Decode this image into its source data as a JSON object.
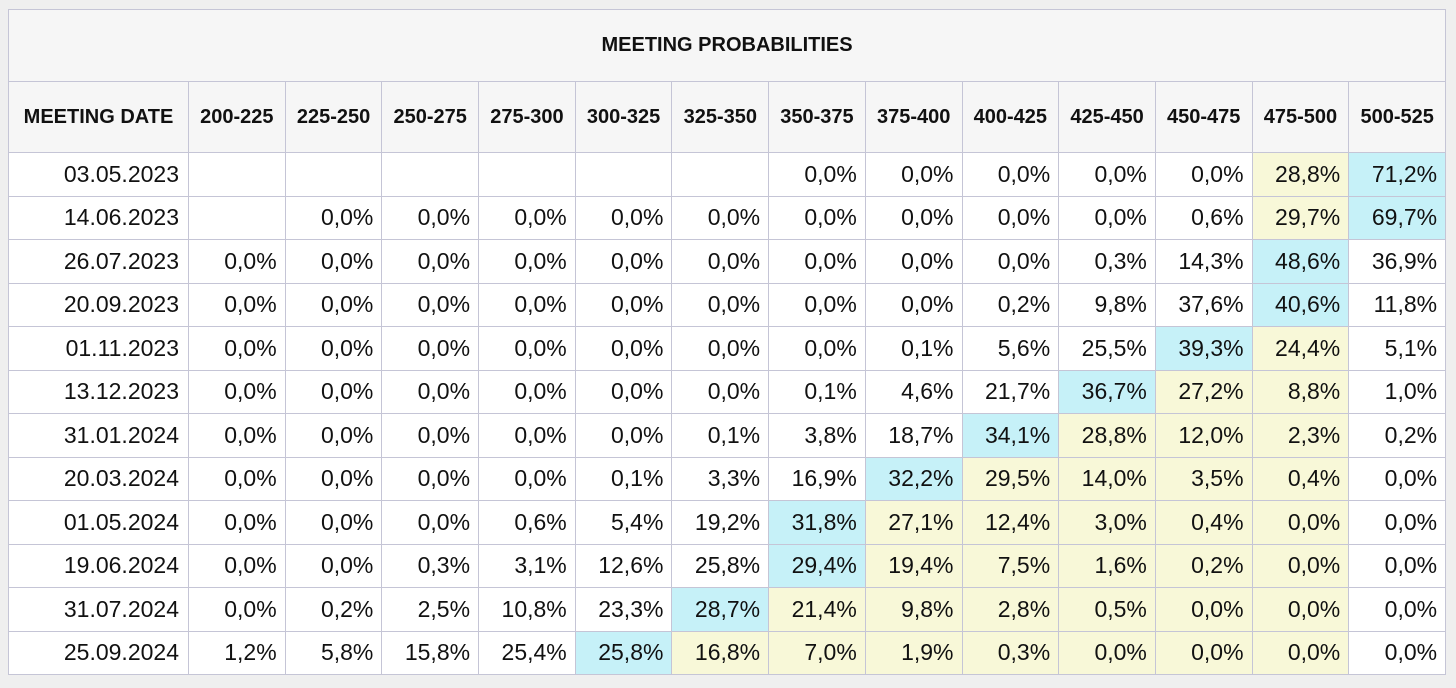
{
  "table": {
    "title": "MEETING PROBABILITIES",
    "date_header": "MEETING DATE",
    "columns": [
      "200-225",
      "225-250",
      "250-275",
      "275-300",
      "300-325",
      "325-350",
      "350-375",
      "375-400",
      "400-425",
      "425-450",
      "450-475",
      "475-500",
      "500-525"
    ],
    "colors": {
      "blue": "#c6f1f8",
      "yellow": "#f8f8d8"
    },
    "rows": [
      {
        "date": "03.05.2023",
        "cells": [
          {
            "v": ""
          },
          {
            "v": ""
          },
          {
            "v": ""
          },
          {
            "v": ""
          },
          {
            "v": ""
          },
          {
            "v": ""
          },
          {
            "v": "0,0%"
          },
          {
            "v": "0,0%"
          },
          {
            "v": "0,0%"
          },
          {
            "v": "0,0%"
          },
          {
            "v": "0,0%"
          },
          {
            "v": "28,8%",
            "hl": "yellow"
          },
          {
            "v": "71,2%",
            "hl": "blue"
          }
        ]
      },
      {
        "date": "14.06.2023",
        "cells": [
          {
            "v": ""
          },
          {
            "v": "0,0%"
          },
          {
            "v": "0,0%"
          },
          {
            "v": "0,0%"
          },
          {
            "v": "0,0%"
          },
          {
            "v": "0,0%"
          },
          {
            "v": "0,0%"
          },
          {
            "v": "0,0%"
          },
          {
            "v": "0,0%"
          },
          {
            "v": "0,0%"
          },
          {
            "v": "0,6%"
          },
          {
            "v": "29,7%",
            "hl": "yellow"
          },
          {
            "v": "69,7%",
            "hl": "blue"
          }
        ]
      },
      {
        "date": "26.07.2023",
        "cells": [
          {
            "v": "0,0%"
          },
          {
            "v": "0,0%"
          },
          {
            "v": "0,0%"
          },
          {
            "v": "0,0%"
          },
          {
            "v": "0,0%"
          },
          {
            "v": "0,0%"
          },
          {
            "v": "0,0%"
          },
          {
            "v": "0,0%"
          },
          {
            "v": "0,0%"
          },
          {
            "v": "0,3%"
          },
          {
            "v": "14,3%"
          },
          {
            "v": "48,6%",
            "hl": "blue"
          },
          {
            "v": "36,9%"
          }
        ]
      },
      {
        "date": "20.09.2023",
        "cells": [
          {
            "v": "0,0%"
          },
          {
            "v": "0,0%"
          },
          {
            "v": "0,0%"
          },
          {
            "v": "0,0%"
          },
          {
            "v": "0,0%"
          },
          {
            "v": "0,0%"
          },
          {
            "v": "0,0%"
          },
          {
            "v": "0,0%"
          },
          {
            "v": "0,2%"
          },
          {
            "v": "9,8%"
          },
          {
            "v": "37,6%"
          },
          {
            "v": "40,6%",
            "hl": "blue"
          },
          {
            "v": "11,8%"
          }
        ]
      },
      {
        "date": "01.11.2023",
        "cells": [
          {
            "v": "0,0%"
          },
          {
            "v": "0,0%"
          },
          {
            "v": "0,0%"
          },
          {
            "v": "0,0%"
          },
          {
            "v": "0,0%"
          },
          {
            "v": "0,0%"
          },
          {
            "v": "0,0%"
          },
          {
            "v": "0,1%"
          },
          {
            "v": "5,6%"
          },
          {
            "v": "25,5%"
          },
          {
            "v": "39,3%",
            "hl": "blue"
          },
          {
            "v": "24,4%",
            "hl": "yellow"
          },
          {
            "v": "5,1%"
          }
        ]
      },
      {
        "date": "13.12.2023",
        "cells": [
          {
            "v": "0,0%"
          },
          {
            "v": "0,0%"
          },
          {
            "v": "0,0%"
          },
          {
            "v": "0,0%"
          },
          {
            "v": "0,0%"
          },
          {
            "v": "0,0%"
          },
          {
            "v": "0,1%"
          },
          {
            "v": "4,6%"
          },
          {
            "v": "21,7%"
          },
          {
            "v": "36,7%",
            "hl": "blue"
          },
          {
            "v": "27,2%",
            "hl": "yellow"
          },
          {
            "v": "8,8%",
            "hl": "yellow"
          },
          {
            "v": "1,0%"
          }
        ]
      },
      {
        "date": "31.01.2024",
        "cells": [
          {
            "v": "0,0%"
          },
          {
            "v": "0,0%"
          },
          {
            "v": "0,0%"
          },
          {
            "v": "0,0%"
          },
          {
            "v": "0,0%"
          },
          {
            "v": "0,1%"
          },
          {
            "v": "3,8%"
          },
          {
            "v": "18,7%"
          },
          {
            "v": "34,1%",
            "hl": "blue"
          },
          {
            "v": "28,8%",
            "hl": "yellow"
          },
          {
            "v": "12,0%",
            "hl": "yellow"
          },
          {
            "v": "2,3%",
            "hl": "yellow"
          },
          {
            "v": "0,2%"
          }
        ]
      },
      {
        "date": "20.03.2024",
        "cells": [
          {
            "v": "0,0%"
          },
          {
            "v": "0,0%"
          },
          {
            "v": "0,0%"
          },
          {
            "v": "0,0%"
          },
          {
            "v": "0,1%"
          },
          {
            "v": "3,3%"
          },
          {
            "v": "16,9%"
          },
          {
            "v": "32,2%",
            "hl": "blue"
          },
          {
            "v": "29,5%",
            "hl": "yellow"
          },
          {
            "v": "14,0%",
            "hl": "yellow"
          },
          {
            "v": "3,5%",
            "hl": "yellow"
          },
          {
            "v": "0,4%",
            "hl": "yellow"
          },
          {
            "v": "0,0%"
          }
        ]
      },
      {
        "date": "01.05.2024",
        "cells": [
          {
            "v": "0,0%"
          },
          {
            "v": "0,0%"
          },
          {
            "v": "0,0%"
          },
          {
            "v": "0,6%"
          },
          {
            "v": "5,4%"
          },
          {
            "v": "19,2%"
          },
          {
            "v": "31,8%",
            "hl": "blue"
          },
          {
            "v": "27,1%",
            "hl": "yellow"
          },
          {
            "v": "12,4%",
            "hl": "yellow"
          },
          {
            "v": "3,0%",
            "hl": "yellow"
          },
          {
            "v": "0,4%",
            "hl": "yellow"
          },
          {
            "v": "0,0%",
            "hl": "yellow"
          },
          {
            "v": "0,0%"
          }
        ]
      },
      {
        "date": "19.06.2024",
        "cells": [
          {
            "v": "0,0%"
          },
          {
            "v": "0,0%"
          },
          {
            "v": "0,3%"
          },
          {
            "v": "3,1%"
          },
          {
            "v": "12,6%"
          },
          {
            "v": "25,8%"
          },
          {
            "v": "29,4%",
            "hl": "blue"
          },
          {
            "v": "19,4%",
            "hl": "yellow"
          },
          {
            "v": "7,5%",
            "hl": "yellow"
          },
          {
            "v": "1,6%",
            "hl": "yellow"
          },
          {
            "v": "0,2%",
            "hl": "yellow"
          },
          {
            "v": "0,0%",
            "hl": "yellow"
          },
          {
            "v": "0,0%"
          }
        ]
      },
      {
        "date": "31.07.2024",
        "cells": [
          {
            "v": "0,0%"
          },
          {
            "v": "0,2%"
          },
          {
            "v": "2,5%"
          },
          {
            "v": "10,8%"
          },
          {
            "v": "23,3%"
          },
          {
            "v": "28,7%",
            "hl": "blue"
          },
          {
            "v": "21,4%",
            "hl": "yellow"
          },
          {
            "v": "9,8%",
            "hl": "yellow"
          },
          {
            "v": "2,8%",
            "hl": "yellow"
          },
          {
            "v": "0,5%",
            "hl": "yellow"
          },
          {
            "v": "0,0%",
            "hl": "yellow"
          },
          {
            "v": "0,0%",
            "hl": "yellow"
          },
          {
            "v": "0,0%"
          }
        ]
      },
      {
        "date": "25.09.2024",
        "cells": [
          {
            "v": "1,2%"
          },
          {
            "v": "5,8%"
          },
          {
            "v": "15,8%"
          },
          {
            "v": "25,4%"
          },
          {
            "v": "25,8%",
            "hl": "blue"
          },
          {
            "v": "16,8%",
            "hl": "yellow"
          },
          {
            "v": "7,0%",
            "hl": "yellow"
          },
          {
            "v": "1,9%",
            "hl": "yellow"
          },
          {
            "v": "0,3%",
            "hl": "yellow"
          },
          {
            "v": "0,0%",
            "hl": "yellow"
          },
          {
            "v": "0,0%",
            "hl": "yellow"
          },
          {
            "v": "0,0%",
            "hl": "yellow"
          },
          {
            "v": "0,0%"
          }
        ]
      }
    ]
  }
}
